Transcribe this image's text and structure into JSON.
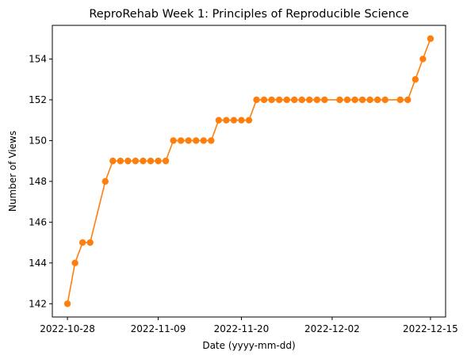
{
  "chart_data": {
    "type": "line",
    "title": "ReproRehab Week 1: Principles of Reproducible Science",
    "xlabel": "Date (yyyy-mm-dd)",
    "ylabel": "Number of Views",
    "x_ticks": [
      "2022-10-28",
      "2022-11-09",
      "2022-11-20",
      "2022-12-02",
      "2022-12-15"
    ],
    "y_ticks": [
      142,
      144,
      146,
      148,
      150,
      152,
      154
    ],
    "xlim": [
      "2022-10-26",
      "2022-12-17"
    ],
    "ylim": [
      141.35,
      155.65
    ],
    "grid": false,
    "series": [
      {
        "color": "#ff7f0e",
        "marker": "circle",
        "x": [
          "2022-10-28",
          "2022-10-29",
          "2022-10-30",
          "2022-10-31",
          "2022-11-02",
          "2022-11-03",
          "2022-11-04",
          "2022-11-05",
          "2022-11-06",
          "2022-11-07",
          "2022-11-08",
          "2022-11-09",
          "2022-11-10",
          "2022-11-11",
          "2022-11-12",
          "2022-11-13",
          "2022-11-14",
          "2022-11-15",
          "2022-11-16",
          "2022-11-17",
          "2022-11-18",
          "2022-11-19",
          "2022-11-20",
          "2022-11-21",
          "2022-11-22",
          "2022-11-23",
          "2022-11-24",
          "2022-11-25",
          "2022-11-26",
          "2022-11-27",
          "2022-11-28",
          "2022-11-29",
          "2022-11-30",
          "2022-12-01",
          "2022-12-03",
          "2022-12-04",
          "2022-12-05",
          "2022-12-06",
          "2022-12-07",
          "2022-12-08",
          "2022-12-09",
          "2022-12-11",
          "2022-12-12",
          "2022-12-13",
          "2022-12-14",
          "2022-12-15"
        ],
        "values": [
          142,
          144,
          145,
          145,
          148,
          149,
          149,
          149,
          149,
          149,
          149,
          149,
          149,
          150,
          150,
          150,
          150,
          150,
          150,
          151,
          151,
          151,
          151,
          151,
          152,
          152,
          152,
          152,
          152,
          152,
          152,
          152,
          152,
          152,
          152,
          152,
          152,
          152,
          152,
          152,
          152,
          152,
          152,
          153,
          154,
          155
        ]
      }
    ]
  }
}
